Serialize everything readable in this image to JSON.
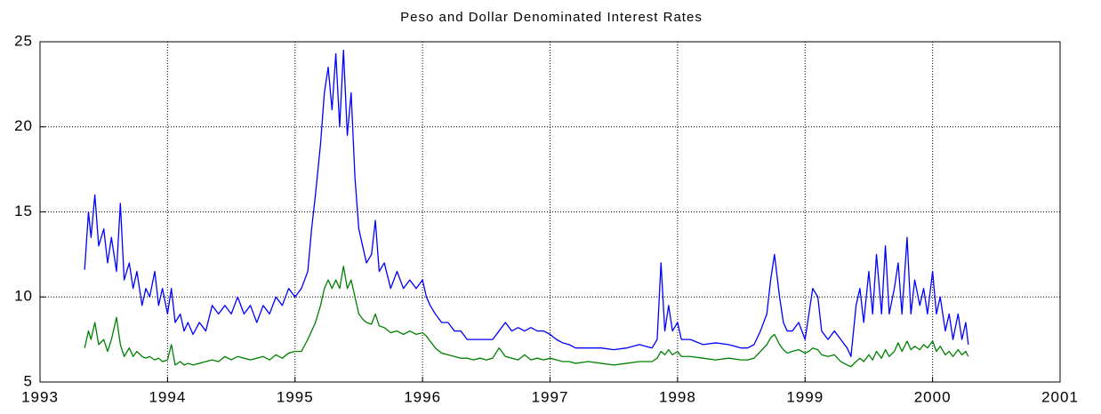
{
  "chart_data": {
    "type": "line",
    "title": "Peso and Dollar Denominated Interest Rates",
    "x": [
      1993.35,
      1993.38,
      1993.4,
      1993.43,
      1993.46,
      1993.5,
      1993.53,
      1993.56,
      1993.6,
      1993.63,
      1993.66,
      1993.7,
      1993.73,
      1993.76,
      1993.8,
      1993.83,
      1993.86,
      1993.9,
      1993.93,
      1993.96,
      1994.0,
      1994.03,
      1994.06,
      1994.1,
      1994.13,
      1994.16,
      1994.2,
      1994.25,
      1994.3,
      1994.35,
      1994.4,
      1994.45,
      1994.5,
      1994.55,
      1994.6,
      1994.65,
      1994.7,
      1994.75,
      1994.8,
      1994.85,
      1994.9,
      1994.95,
      1995.0,
      1995.05,
      1995.1,
      1995.13,
      1995.16,
      1995.2,
      1995.23,
      1995.26,
      1995.29,
      1995.32,
      1995.35,
      1995.38,
      1995.41,
      1995.44,
      1995.47,
      1995.5,
      1995.53,
      1995.56,
      1995.6,
      1995.63,
      1995.66,
      1995.7,
      1995.75,
      1995.8,
      1995.85,
      1995.9,
      1995.95,
      1996.0,
      1996.03,
      1996.06,
      1996.1,
      1996.15,
      1996.2,
      1996.25,
      1996.3,
      1996.35,
      1996.4,
      1996.45,
      1996.5,
      1996.55,
      1996.6,
      1996.65,
      1996.7,
      1996.75,
      1996.8,
      1996.85,
      1996.9,
      1996.95,
      1997.0,
      1997.05,
      1997.1,
      1997.15,
      1997.2,
      1997.3,
      1997.4,
      1997.5,
      1997.6,
      1997.7,
      1997.8,
      1997.84,
      1997.87,
      1997.9,
      1997.93,
      1997.96,
      1998.0,
      1998.03,
      1998.1,
      1998.2,
      1998.3,
      1998.4,
      1998.5,
      1998.55,
      1998.6,
      1998.65,
      1998.7,
      1998.73,
      1998.76,
      1998.8,
      1998.83,
      1998.86,
      1998.9,
      1998.95,
      1999.0,
      1999.03,
      1999.06,
      1999.1,
      1999.13,
      1999.18,
      1999.23,
      1999.28,
      1999.33,
      1999.36,
      1999.4,
      1999.43,
      1999.46,
      1999.5,
      1999.53,
      1999.56,
      1999.6,
      1999.63,
      1999.66,
      1999.7,
      1999.73,
      1999.76,
      1999.8,
      1999.83,
      1999.86,
      1999.9,
      1999.93,
      1999.96,
      2000.0,
      2000.03,
      2000.06,
      2000.1,
      2000.13,
      2000.16,
      2000.2,
      2000.23,
      2000.26,
      2000.28
    ],
    "series": [
      {
        "color": "#0000ff",
        "values": [
          11.6,
          15,
          13.5,
          16,
          13,
          14,
          12,
          13.5,
          11.5,
          15.5,
          11,
          12,
          10.5,
          11.5,
          9.5,
          10.5,
          10,
          11.5,
          9.5,
          10.5,
          9,
          10.5,
          8.5,
          9,
          8,
          8.5,
          7.8,
          8.5,
          8,
          9.5,
          9,
          9.5,
          9,
          10,
          9,
          9.5,
          8.5,
          9.5,
          9,
          10,
          9.5,
          10.5,
          10,
          10.5,
          11.5,
          14,
          16,
          19,
          22,
          23.5,
          21,
          24.3,
          20,
          24.5,
          19.5,
          22,
          17,
          14,
          13,
          12,
          12.5,
          14.5,
          11.5,
          12,
          10.5,
          11.5,
          10.5,
          11,
          10.5,
          11,
          10,
          9.5,
          9,
          8.5,
          8.5,
          8,
          8,
          7.5,
          7.5,
          7.5,
          7.5,
          7.5,
          8,
          8.5,
          8,
          8.2,
          8,
          8.2,
          8,
          8,
          7.8,
          7.5,
          7.3,
          7.2,
          7,
          7,
          7,
          6.9,
          7,
          7.2,
          7,
          7.5,
          12,
          8,
          9.5,
          8,
          8.5,
          7.5,
          7.5,
          7.2,
          7.3,
          7.2,
          7,
          7,
          7.2,
          8,
          9,
          11,
          12.5,
          10,
          8.5,
          8,
          8,
          8.5,
          7.5,
          9,
          10.5,
          10,
          8,
          7.5,
          8,
          7.5,
          7,
          6.5,
          9.5,
          10.5,
          8.5,
          11.5,
          9,
          12.5,
          9,
          13,
          9,
          10.5,
          12,
          9,
          13.5,
          9,
          11,
          9.5,
          10.5,
          9,
          11.5,
          9,
          10,
          8,
          9,
          7.5,
          9,
          7.5,
          8.5,
          7.2
        ]
      },
      {
        "color": "#008000",
        "values": [
          7.0,
          8.0,
          7.5,
          8.5,
          7.2,
          7.5,
          6.8,
          7.5,
          8.8,
          7.2,
          6.5,
          7.0,
          6.5,
          6.8,
          6.5,
          6.4,
          6.5,
          6.3,
          6.4,
          6.2,
          6.3,
          7.2,
          6.0,
          6.2,
          6.0,
          6.1,
          6.0,
          6.1,
          6.2,
          6.3,
          6.2,
          6.5,
          6.3,
          6.5,
          6.4,
          6.3,
          6.4,
          6.5,
          6.3,
          6.6,
          6.4,
          6.7,
          6.8,
          6.8,
          7.5,
          8.0,
          8.5,
          9.5,
          10.5,
          11.0,
          10.5,
          11.0,
          10.5,
          11.8,
          10.5,
          11.0,
          10.0,
          9.0,
          8.7,
          8.5,
          8.4,
          9.0,
          8.3,
          8.2,
          7.9,
          8.0,
          7.8,
          8.0,
          7.8,
          7.9,
          7.7,
          7.4,
          7.0,
          6.7,
          6.6,
          6.5,
          6.4,
          6.4,
          6.3,
          6.4,
          6.3,
          6.4,
          7.0,
          6.5,
          6.4,
          6.3,
          6.6,
          6.3,
          6.4,
          6.3,
          6.4,
          6.3,
          6.2,
          6.2,
          6.1,
          6.2,
          6.1,
          6.0,
          6.1,
          6.2,
          6.2,
          6.4,
          6.8,
          6.6,
          6.9,
          6.6,
          6.8,
          6.5,
          6.5,
          6.4,
          6.3,
          6.4,
          6.3,
          6.3,
          6.4,
          6.8,
          7.2,
          7.6,
          7.8,
          7.2,
          6.9,
          6.7,
          6.8,
          6.9,
          6.7,
          6.8,
          7.0,
          6.9,
          6.6,
          6.5,
          6.6,
          6.2,
          6.0,
          5.9,
          6.2,
          6.4,
          6.2,
          6.6,
          6.3,
          6.8,
          6.4,
          6.9,
          6.5,
          6.8,
          7.3,
          6.8,
          7.4,
          6.9,
          7.1,
          6.9,
          7.2,
          7.0,
          7.4,
          6.8,
          7.1,
          6.6,
          6.8,
          6.5,
          6.9,
          6.6,
          6.8,
          6.5
        ]
      }
    ],
    "xlim": [
      1993,
      2001
    ],
    "xticks": [
      1993,
      1994,
      1995,
      1996,
      1997,
      1998,
      1999,
      2000,
      2001
    ],
    "ylim": [
      5,
      25
    ],
    "yticks": [
      5,
      10,
      15,
      20,
      25
    ],
    "grid": true
  }
}
